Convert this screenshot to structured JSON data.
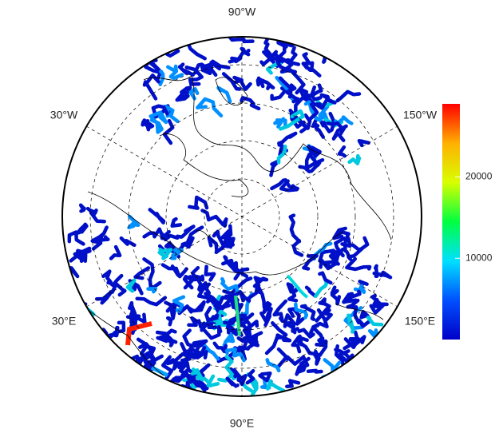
{
  "map": {
    "longitude_labels": {
      "top": "90°W",
      "upper_left": "30°W",
      "upper_right": "150°W",
      "lower_left": "30°E",
      "lower_right": "150°E",
      "bottom": "90°E"
    },
    "colorbar": {
      "lim": [
        0,
        29000
      ],
      "ticks": [
        10000,
        20000
      ],
      "colors": [
        "#0000c8",
        "#0050ff",
        "#00e0ff",
        "#00ff40",
        "#d8ff00",
        "#ffb000",
        "#ff0000"
      ]
    }
  }
}
